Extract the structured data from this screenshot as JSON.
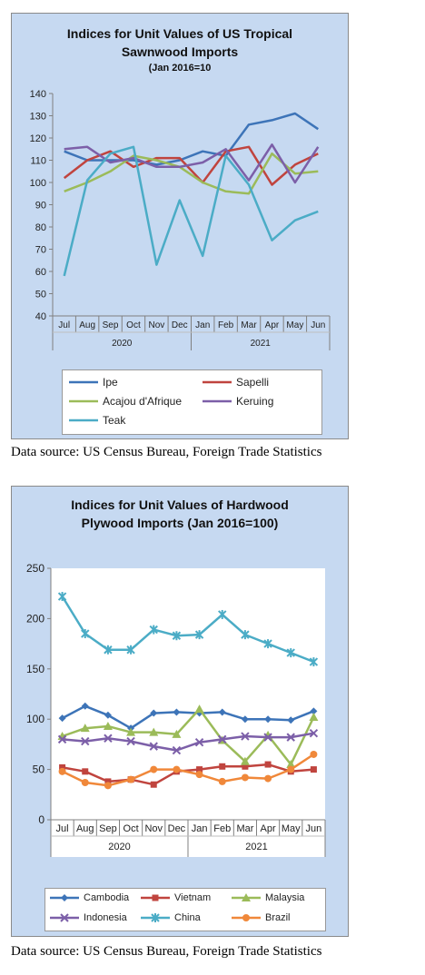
{
  "chart_data": [
    {
      "type": "line",
      "title": "Indices for Unit Values of US Tropical Sawnwood Imports",
      "subtitle": "(Jan 2016=10",
      "categories": [
        "Jul",
        "Aug",
        "Sep",
        "Oct",
        "Nov",
        "Dec",
        "Jan",
        "Feb",
        "Mar",
        "Apr",
        "May",
        "Jun"
      ],
      "year_groups": [
        {
          "label": "2020",
          "span": 6
        },
        {
          "label": "2021",
          "span": 6
        }
      ],
      "ylim": [
        40,
        140
      ],
      "yticks": [
        40,
        50,
        60,
        70,
        80,
        90,
        100,
        110,
        120,
        130,
        140
      ],
      "grid": false,
      "legend_position": "bottom",
      "markers": false,
      "series": [
        {
          "name": "Ipe",
          "color": "#3d74b8",
          "values": [
            114,
            110,
            110,
            110,
            108,
            110,
            114,
            112,
            126,
            128,
            131,
            124
          ]
        },
        {
          "name": "Sapelli",
          "color": "#c0443e",
          "values": [
            102,
            110,
            114,
            107,
            111,
            111,
            100,
            114,
            116,
            99,
            108,
            113
          ]
        },
        {
          "name": "Acajou d'Afrique",
          "color": "#9bbb59",
          "values": [
            96,
            100,
            105,
            112,
            110,
            107,
            100,
            96,
            95,
            113,
            104,
            105
          ]
        },
        {
          "name": "Keruing",
          "color": "#7c5fa8",
          "values": [
            115,
            116,
            109,
            111,
            107,
            107,
            109,
            115,
            101,
            117,
            100,
            116
          ]
        },
        {
          "name": "Teak",
          "color": "#4bacc6",
          "values": [
            58,
            101,
            113,
            116,
            63,
            92,
            67,
            112,
            99,
            74,
            83,
            87
          ]
        }
      ]
    },
    {
      "type": "line",
      "title": "Indices for Unit Values of Hardwood Plywood Imports (Jan 2016=100)",
      "categories": [
        "Jul",
        "Aug",
        "Sep",
        "Oct",
        "Nov",
        "Dec",
        "Jan",
        "Feb",
        "Mar",
        "Apr",
        "May",
        "Jun"
      ],
      "year_groups": [
        {
          "label": "2020",
          "span": 6
        },
        {
          "label": "2021",
          "span": 6
        }
      ],
      "ylim": [
        0,
        250
      ],
      "yticks": [
        0,
        50,
        100,
        150,
        200,
        250
      ],
      "grid": false,
      "legend_position": "bottom",
      "markers": true,
      "series": [
        {
          "name": "Cambodia",
          "color": "#3d74b8",
          "marker": "diamond",
          "values": [
            101,
            113,
            104,
            91,
            106,
            107,
            106,
            107,
            100,
            100,
            99,
            108
          ]
        },
        {
          "name": "Vietnam",
          "color": "#c0443e",
          "marker": "square",
          "values": [
            52,
            48,
            38,
            40,
            35,
            48,
            50,
            53,
            53,
            55,
            48,
            50
          ]
        },
        {
          "name": "Malaysia",
          "color": "#9bbb59",
          "marker": "triangle",
          "values": [
            83,
            91,
            93,
            87,
            87,
            85,
            110,
            79,
            58,
            84,
            55,
            102
          ]
        },
        {
          "name": "Indonesia",
          "color": "#7c5fa8",
          "marker": "x",
          "values": [
            80,
            78,
            81,
            78,
            73,
            69,
            77,
            80,
            83,
            82,
            82,
            86
          ]
        },
        {
          "name": "China",
          "color": "#4bacc6",
          "marker": "star",
          "values": [
            222,
            185,
            169,
            169,
            189,
            183,
            184,
            204,
            184,
            175,
            166,
            157
          ]
        },
        {
          "name": "Brazil",
          "color": "#f0883a",
          "marker": "circle",
          "values": [
            48,
            37,
            34,
            40,
            50,
            50,
            45,
            38,
            42,
            41,
            50,
            65
          ]
        }
      ]
    }
  ],
  "titles": {
    "chart1_line1": "Indices for Unit Values of US Tropical",
    "chart1_line2": "Sawnwood Imports",
    "chart1_sub": "(Jan 2016=10",
    "chart2_line1": "Indices for Unit Values of Hardwood",
    "chart2_line2": "Plywood Imports (Jan 2016=100)"
  },
  "source_text": "Data source: US Census Bureau, Foreign Trade Statistics"
}
